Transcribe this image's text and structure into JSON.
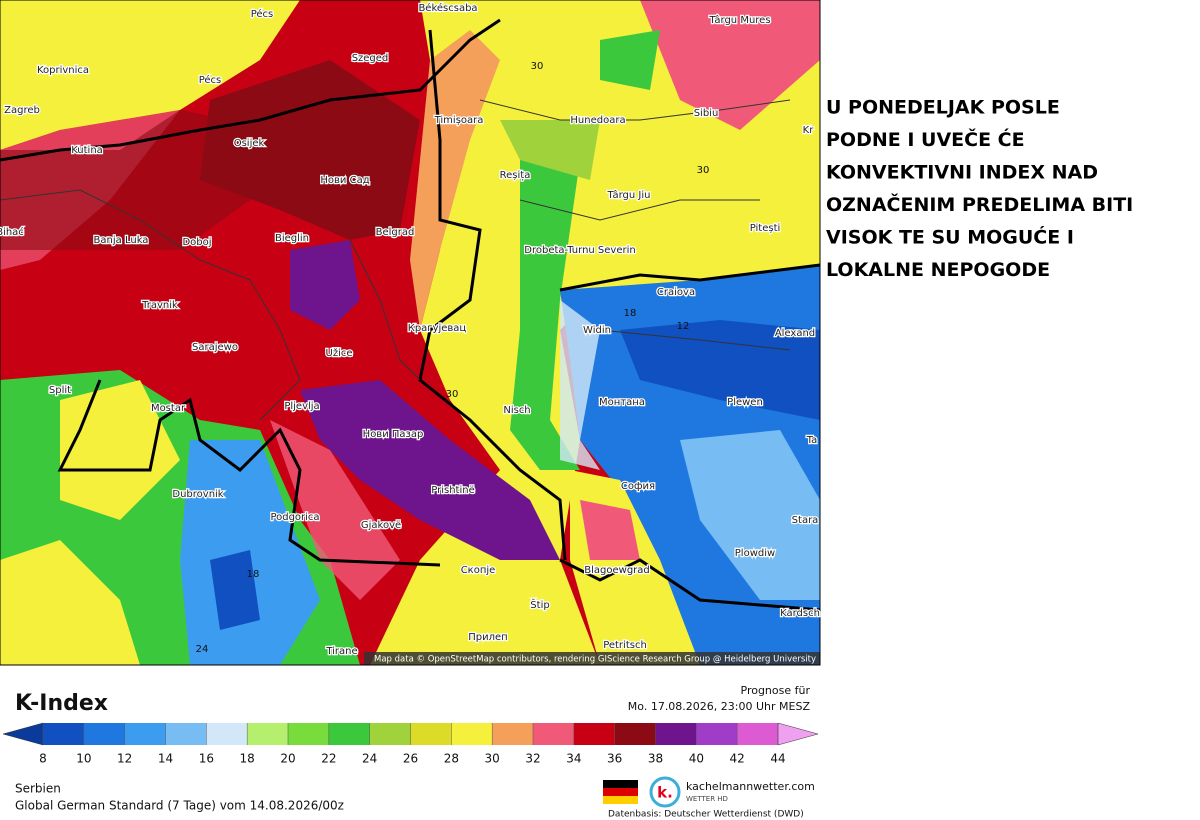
{
  "map": {
    "cities": [
      "Pécs",
      "Békéscsaba",
      "Târgu Mures",
      "Koprivnica",
      "Szeged",
      "Pécs",
      "Zagreb",
      "Timișoara",
      "Hunedoara",
      "Sibiu",
      "Kutina",
      "Osijek",
      "Нови Сад",
      "Reșița",
      "Târgu Jiu",
      "Pitești",
      "Bihać",
      "Banja Luka",
      "Doboj",
      "Bieglin",
      "Belgrad",
      "Drobeta-Turnu Severin",
      "Craiova",
      "Travnik",
      "Крагујевац",
      "Widin",
      "Alexand",
      "Sarajewo",
      "Užice",
      "Split",
      "Mostar",
      "Pljevlja",
      "Nisch",
      "Монтана",
      "Plewen",
      "Нови Пазар",
      "София",
      "Dubrovnik",
      "Prishtinë",
      "Podgorica",
      "Gjakovë",
      "Stara",
      "Plowdiw",
      "Скопје",
      "Blagoewgrad",
      "Štip",
      "Kardsch",
      "Petritsch",
      "Прилеп",
      "Tirane",
      "Kr",
      "Ta"
    ],
    "contour_labels": [
      30,
      30,
      18,
      12,
      30,
      18,
      24
    ],
    "attribution": "Map data © OpenStreetMap contributors, rendering GIScience Research Group @ Heidelberg University"
  },
  "side_note": [
    "U PONEDELJAK POSLE",
    "PODNE I UVEČE ĆE",
    "KONVEKTIVNI INDEX NAD",
    "OZNAČENIM PREDELIMA BITI",
    "VISOK TE SU MOGUĆE I",
    "LOKALNE NEPOGODE"
  ],
  "legend": {
    "title": "K-Index",
    "ticks": [
      8,
      10,
      12,
      14,
      16,
      18,
      20,
      22,
      24,
      26,
      28,
      30,
      32,
      34,
      36,
      38,
      40,
      42,
      44
    ],
    "colors": [
      "#0a3a9a",
      "#1050c0",
      "#1e78e0",
      "#3c9cf0",
      "#78bcf4",
      "#d2e8f8",
      "#b4f06e",
      "#78dc3c",
      "#3cc83c",
      "#a0d23c",
      "#dcdc28",
      "#f4f03c",
      "#f4a05a",
      "#f05a78",
      "#c80014",
      "#8c0a14",
      "#6e148c",
      "#a03cc8",
      "#dc5ad2",
      "#f0a0f0"
    ]
  },
  "forecast": {
    "label": "Prognose für",
    "time": "Mo. 17.08.2026, 23:00 Uhr MESZ"
  },
  "region": "Serbien",
  "model": "Global German Standard (7 Tage) vom 14.08.2026/00z",
  "brand": {
    "logo": "k.",
    "name": "kachelmannwetter.com",
    "sub": "WETTER HD"
  },
  "source": "Datenbasis: Deutscher Wetterdienst (DWD)"
}
